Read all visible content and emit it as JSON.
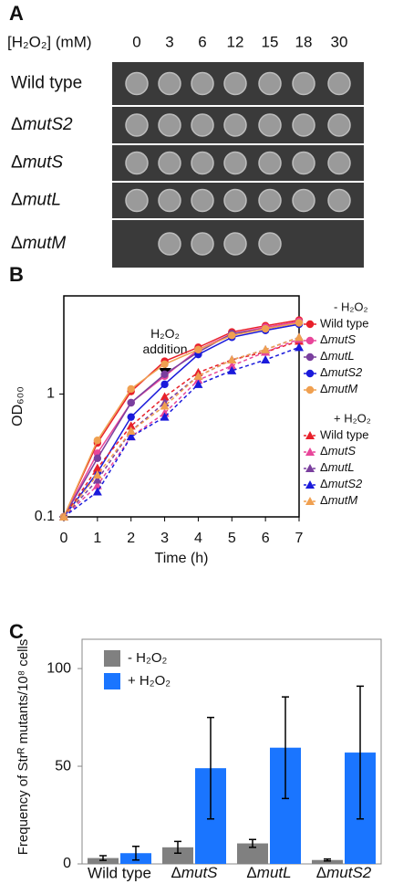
{
  "panel_a": {
    "panel_label": "A",
    "concentration_label": "[H₂O₂] (mM)",
    "concentrations": [
      "0",
      "3",
      "6",
      "12",
      "15",
      "18",
      "30"
    ],
    "strains": [
      "Wild type",
      "ΔmutS2",
      "ΔmutS",
      "ΔmutL",
      "ΔmutM"
    ]
  },
  "chart_data": [
    {
      "type": "line",
      "panel_label": "B",
      "x_label": "Time (h)",
      "y_label": "OD₆₀₀",
      "annotation": "H₂O₂ addition",
      "x": [
        0,
        1,
        2,
        3,
        4,
        5,
        6,
        7
      ],
      "xlim": [
        0,
        7
      ],
      "xticks": [
        0,
        1,
        2,
        3,
        4,
        5,
        6,
        7
      ],
      "ylim": [
        0.1,
        6.3
      ],
      "yticks": [
        0.1,
        1
      ],
      "log_y": true,
      "series_groups": [
        {
          "name": "- H₂O₂",
          "marker": "circle",
          "dashed": false,
          "series": [
            {
              "name": "Wild type",
              "color": "#e8202a",
              "values": [
                0.1,
                0.4,
                1.05,
                1.85,
                2.4,
                3.2,
                3.6,
                4.0
              ]
            },
            {
              "name": "ΔmutS",
              "color": "#e8469a",
              "values": [
                0.1,
                0.33,
                0.85,
                1.4,
                2.3,
                3.1,
                3.5,
                3.9
              ]
            },
            {
              "name": "ΔmutL",
              "color": "#7a3f9e",
              "values": [
                0.1,
                0.3,
                0.85,
                1.45,
                2.2,
                3.1,
                3.4,
                3.8
              ]
            },
            {
              "name": "ΔmutS2",
              "color": "#1a1adb",
              "values": [
                0.1,
                0.23,
                0.65,
                1.2,
                2.1,
                2.9,
                3.3,
                3.7
              ]
            },
            {
              "name": "ΔmutM",
              "color": "#f0a050",
              "values": [
                0.1,
                0.42,
                1.1,
                1.75,
                2.3,
                3.0,
                3.4,
                3.8
              ]
            }
          ]
        },
        {
          "name": "+ H₂O₂",
          "marker": "triangle",
          "dashed": true,
          "series": [
            {
              "name": "Wild type",
              "color": "#e8202a",
              "values": [
                0.1,
                0.25,
                0.55,
                0.95,
                1.5,
                1.9,
                2.2,
                2.7
              ]
            },
            {
              "name": "ΔmutS",
              "color": "#e8469a",
              "values": [
                0.1,
                0.18,
                0.45,
                0.7,
                1.3,
                1.7,
                2.2,
                2.8
              ]
            },
            {
              "name": "ΔmutL",
              "color": "#7a3f9e",
              "values": [
                0.1,
                0.2,
                0.5,
                0.85,
                1.4,
                1.9,
                2.3,
                2.9
              ]
            },
            {
              "name": "ΔmutS2",
              "color": "#1a1adb",
              "values": [
                0.1,
                0.16,
                0.45,
                0.65,
                1.2,
                1.55,
                1.9,
                2.4
              ]
            },
            {
              "name": "ΔmutM",
              "color": "#f0a050",
              "values": [
                0.1,
                0.22,
                0.5,
                0.8,
                1.4,
                1.9,
                2.3,
                2.9
              ]
            }
          ]
        }
      ]
    },
    {
      "type": "bar",
      "panel_label": "C",
      "y_label": "Frequency of Strᴿ mutants/10⁸ cells",
      "categories": [
        "Wild type",
        "ΔmutS",
        "ΔmutL",
        "ΔmutS2"
      ],
      "ylim": [
        0,
        115
      ],
      "yticks": [
        0,
        50,
        100
      ],
      "series": [
        {
          "name": "- H₂O₂",
          "color": "#808080",
          "values": [
            3,
            8.5,
            10.5,
            2
          ],
          "errors": [
            1.2,
            3,
            2,
            0.5
          ]
        },
        {
          "name": "+ H₂O₂",
          "color": "#1a75ff",
          "values": [
            5.5,
            49,
            59.5,
            57
          ],
          "errors": [
            3.5,
            26,
            26,
            34
          ]
        }
      ]
    }
  ]
}
